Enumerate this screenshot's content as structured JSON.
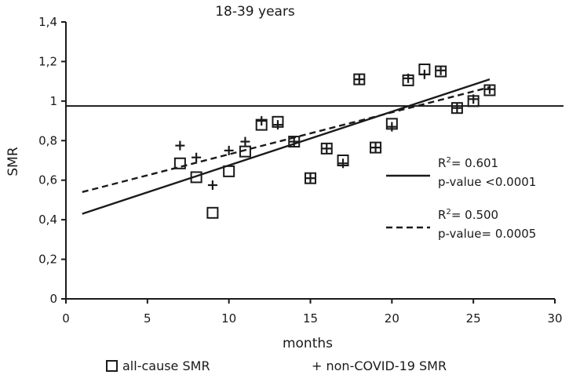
{
  "chart_data": {
    "type": "scatter",
    "title": "18-39 years",
    "xlabel": "months",
    "ylabel": "SMR",
    "xlim": [
      0,
      30
    ],
    "ylim": [
      0,
      1.4
    ],
    "x_ticks": [
      0,
      5,
      10,
      15,
      20,
      25,
      30
    ],
    "y_ticks": [
      0,
      0.2,
      0.4,
      0.6,
      0.8,
      1,
      1.2,
      1.4
    ],
    "x_tick_labels": [
      "0",
      "5",
      "10",
      "15",
      "20",
      "25",
      "30"
    ],
    "y_tick_labels": [
      "0",
      "0,2",
      "0,4",
      "0,6",
      "0,8",
      "1",
      "1,2",
      "1,4"
    ],
    "reference_line_y": 0.975,
    "series": [
      {
        "name": "all-cause SMR",
        "marker": "open-square",
        "points": [
          [
            7,
            0.685
          ],
          [
            8,
            0.615
          ],
          [
            9,
            0.435
          ],
          [
            10,
            0.645
          ],
          [
            11,
            0.745
          ],
          [
            12,
            0.88
          ],
          [
            13,
            0.895
          ],
          [
            14,
            0.795
          ],
          [
            15,
            0.61
          ],
          [
            16,
            0.76
          ],
          [
            17,
            0.7
          ],
          [
            18,
            1.11
          ],
          [
            19,
            0.765
          ],
          [
            20,
            0.885
          ],
          [
            21,
            1.105
          ],
          [
            22,
            1.16
          ],
          [
            23,
            1.15
          ],
          [
            24,
            0.965
          ],
          [
            25,
            1.0
          ],
          [
            26,
            1.055
          ]
        ],
        "trend": {
          "style": "solid",
          "x": [
            1,
            26
          ],
          "y": [
            0.43,
            1.11
          ]
        }
      },
      {
        "name": "non-COVID-19 SMR",
        "marker": "plus",
        "points": [
          [
            7,
            0.775
          ],
          [
            8,
            0.715
          ],
          [
            9,
            0.575
          ],
          [
            10,
            0.75
          ],
          [
            11,
            0.795
          ],
          [
            12,
            0.9
          ],
          [
            13,
            0.88
          ],
          [
            14,
            0.795
          ],
          [
            15,
            0.61
          ],
          [
            16,
            0.76
          ],
          [
            17,
            0.685
          ],
          [
            18,
            1.11
          ],
          [
            19,
            0.765
          ],
          [
            20,
            0.87
          ],
          [
            21,
            1.115
          ],
          [
            22,
            1.135
          ],
          [
            23,
            1.155
          ],
          [
            24,
            0.965
          ],
          [
            25,
            1.01
          ],
          [
            26,
            1.06
          ]
        ],
        "trend": {
          "style": "dashed",
          "x": [
            1,
            26
          ],
          "y": [
            0.54,
            1.07
          ]
        }
      }
    ],
    "annotations": [
      {
        "series": "all-cause SMR",
        "r2_label": "R",
        "r2_sup": "2",
        "r2_value": "= 0.601",
        "p_text": "p-value <0.0001"
      },
      {
        "series": "non-COVID-19 SMR",
        "r2_label": "R",
        "r2_sup": "2",
        "r2_value": "= 0.500",
        "p_text": "p-value= 0.0005"
      }
    ],
    "legend": [
      {
        "marker": "square",
        "label": "all-cause SMR"
      },
      {
        "marker": "plus",
        "label": "+ non-COVID-19 SMR"
      }
    ],
    "colors": {
      "ink": "#1a1a1a",
      "background": "#ffffff"
    }
  }
}
